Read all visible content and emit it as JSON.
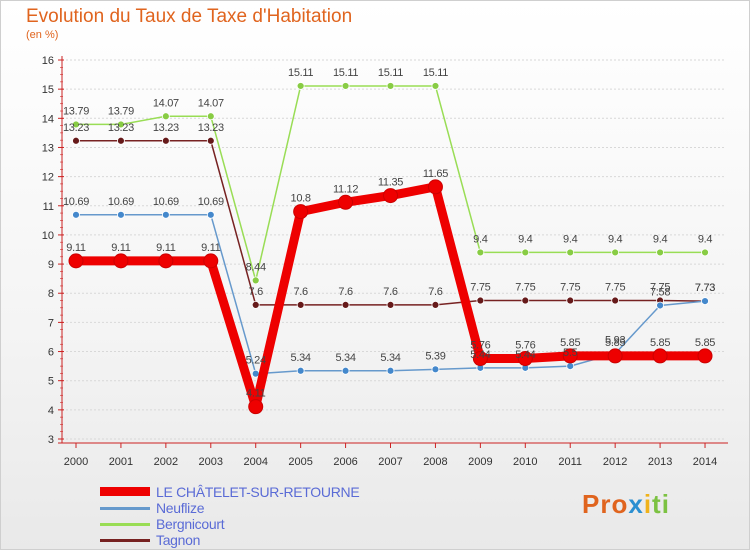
{
  "title": "Evolution du Taux de Taxe d'Habitation",
  "unit": "(en %)",
  "logo": {
    "part1": "Pro",
    "part2": "x",
    "part3": "i",
    "part4": "ti"
  },
  "chart_data": {
    "type": "line",
    "title": "Evolution du Taux de Taxe d'Habitation",
    "ylabel": "(en %)",
    "xlabel": "",
    "ylim": [
      3,
      16
    ],
    "yticks": [
      3,
      4,
      5,
      6,
      7,
      8,
      9,
      10,
      11,
      12,
      13,
      14,
      15,
      16
    ],
    "grid": "horizontal",
    "legend_position": "bottom-left",
    "x": [
      "2000",
      "2001",
      "2002",
      "2003",
      "2004",
      "2005",
      "2006",
      "2007",
      "2008",
      "2009",
      "2010",
      "2011",
      "2012",
      "2013",
      "2014"
    ],
    "series": [
      {
        "name": "Bergnicourt",
        "color": "#99dd55",
        "marker_color": "#88cc44",
        "width": "thin",
        "values": [
          13.79,
          13.79,
          14.07,
          14.07,
          8.44,
          15.11,
          15.11,
          15.11,
          15.11,
          9.4,
          9.4,
          9.4,
          9.4,
          9.4,
          9.4
        ],
        "labels": [
          "13.79",
          "13.79",
          "14.07",
          "14.07",
          "8.44",
          "15.11",
          "15.11",
          "15.11",
          "15.11",
          "9.4",
          "9.4",
          "9.4",
          "9.4",
          "9.4",
          "9.4"
        ]
      },
      {
        "name": "Tagnon",
        "color": "#772222",
        "marker_color": "#661a1a",
        "width": "thin",
        "values": [
          13.23,
          13.23,
          13.23,
          13.23,
          7.6,
          7.6,
          7.6,
          7.6,
          7.6,
          7.75,
          7.75,
          7.75,
          7.75,
          7.75,
          7.73
        ],
        "labels": [
          "13.23",
          "13.23",
          "13.23",
          "13.23",
          "7.6",
          "7.6",
          "7.6",
          "7.6",
          "7.6",
          "7.75",
          "7.75",
          "7.75",
          "7.75",
          "7.75",
          "7.73"
        ]
      },
      {
        "name": "Neuflize",
        "color": "#6699cc",
        "marker_color": "#4488cc",
        "width": "thin",
        "values": [
          10.69,
          10.69,
          10.69,
          10.69,
          5.24,
          5.34,
          5.34,
          5.34,
          5.39,
          5.44,
          5.44,
          5.5,
          5.93,
          7.58,
          7.73
        ],
        "labels": [
          "10.69",
          "10.69",
          "10.69",
          "10.69",
          "5.24",
          "5.34",
          "5.34",
          "5.34",
          "5.39",
          "5.44",
          "5.44",
          "5.5",
          "5.93",
          "7.58",
          "7.73"
        ]
      },
      {
        "name": "LE CHÂTELET-SUR-RETOURNE",
        "color": "#ee0000",
        "marker_color": "#ee0000",
        "width": "thick",
        "values": [
          9.11,
          9.11,
          9.11,
          9.11,
          4.11,
          10.8,
          11.12,
          11.35,
          11.65,
          5.76,
          5.76,
          5.85,
          5.85,
          5.85,
          5.85
        ],
        "labels": [
          "9.11",
          "9.11",
          "9.11",
          "9.11",
          "4.11",
          "10.8",
          "11.12",
          "11.35",
          "11.65",
          "5.76",
          "5.76",
          "5.85",
          "5.85",
          "5.85",
          "5.85"
        ]
      }
    ]
  },
  "legend": [
    {
      "label": "LE CHÂTELET-SUR-RETOURNE",
      "color": "#ee0000"
    },
    {
      "label": "Neuflize",
      "color": "#6699cc"
    },
    {
      "label": "Bergnicourt",
      "color": "#99dd55"
    },
    {
      "label": "Tagnon",
      "color": "#772222"
    }
  ]
}
